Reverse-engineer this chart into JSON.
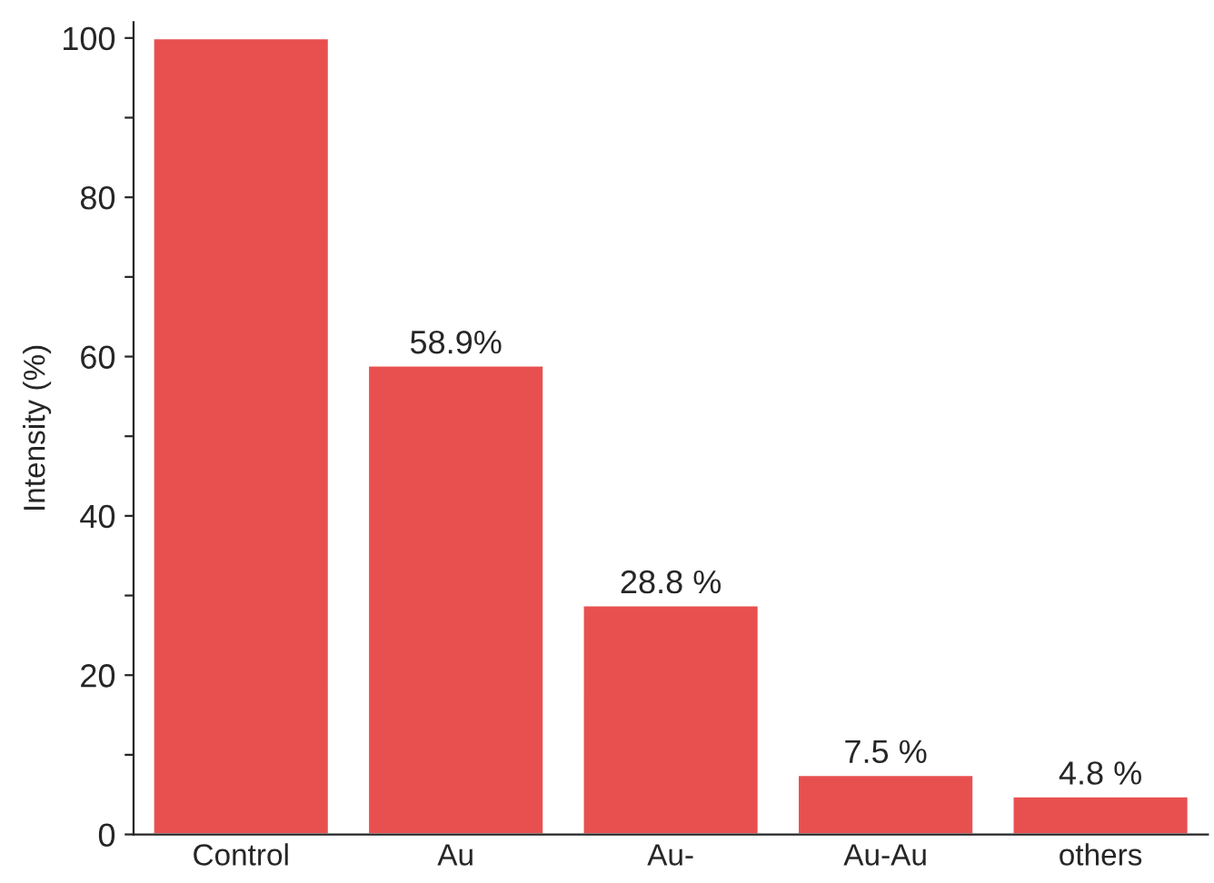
{
  "chart_data": {
    "type": "bar",
    "ylabel": "Intensity (%)",
    "categories": [
      "Control",
      "Au",
      "Au-",
      "Au-Au",
      "others"
    ],
    "values": [
      100,
      58.9,
      28.8,
      7.5,
      4.8
    ],
    "value_labels": [
      null,
      "58.9%",
      "28.8 %",
      "7.5 %",
      "4.8 %"
    ],
    "color": "#e85050",
    "ylim": [
      0,
      102
    ],
    "yticks": [
      0,
      {
        "value": 10,
        "label": null
      },
      20,
      {
        "value": 30,
        "label": null
      },
      40,
      {
        "value": 50,
        "label": null
      },
      60,
      {
        "value": 70,
        "label": null
      },
      80,
      {
        "value": 90,
        "label": null
      },
      100
    ],
    "grid": false,
    "legend": false
  }
}
